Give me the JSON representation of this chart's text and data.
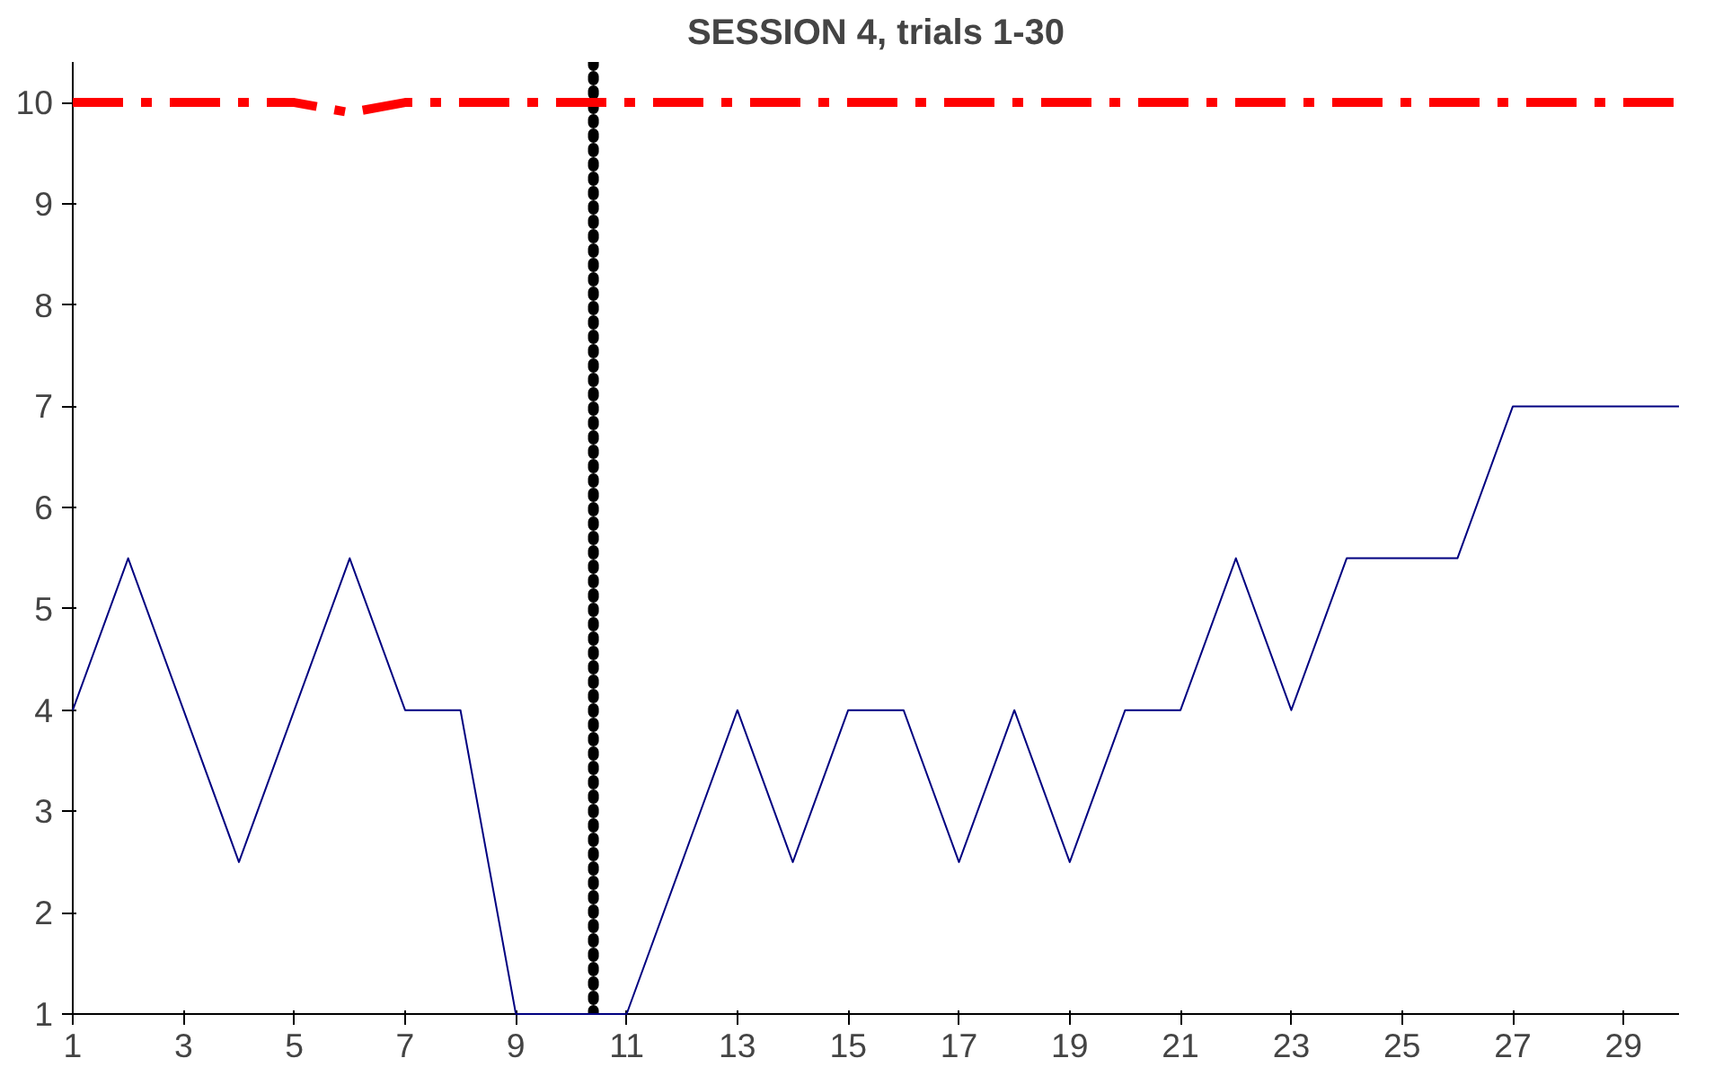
{
  "chart_data": {
    "type": "line",
    "title": "SESSION 4, trials 1-30",
    "x": [
      1,
      2,
      3,
      4,
      5,
      6,
      7,
      8,
      9,
      10,
      11,
      12,
      13,
      14,
      15,
      16,
      17,
      18,
      19,
      20,
      21,
      22,
      23,
      24,
      25,
      26,
      27,
      28,
      29,
      30
    ],
    "series": [
      {
        "color": "#000080",
        "line_style": "solid",
        "values": [
          4,
          5.5,
          4,
          2.5,
          4,
          5.5,
          4,
          4,
          1,
          1,
          1,
          2.5,
          4,
          2.5,
          4,
          4,
          2.5,
          4,
          2.5,
          4,
          4,
          5.5,
          4,
          5.5,
          5.5,
          5.5,
          7,
          7,
          7,
          7
        ]
      },
      {
        "color": "#ff0000",
        "line_style": "dashed",
        "values": [
          10,
          10,
          10,
          10,
          10,
          9.9,
          10,
          10,
          10,
          10,
          10,
          10,
          10,
          10,
          10,
          10,
          10,
          10,
          10,
          10,
          10,
          10,
          10,
          10,
          10,
          10,
          10,
          10,
          10,
          10
        ]
      }
    ],
    "xlim": [
      1,
      30
    ],
    "ylim": [
      1,
      10.4
    ],
    "xticks": [
      1,
      3,
      5,
      7,
      9,
      11,
      13,
      15,
      17,
      19,
      21,
      23,
      25,
      27,
      29
    ],
    "yticks": [
      1,
      2,
      3,
      4,
      5,
      6,
      7,
      8,
      9,
      10
    ],
    "ref_lines": [
      {
        "axis": "x",
        "value": 10.4,
        "color": "#000000",
        "line_style": "dotted"
      }
    ],
    "marker": "none"
  }
}
